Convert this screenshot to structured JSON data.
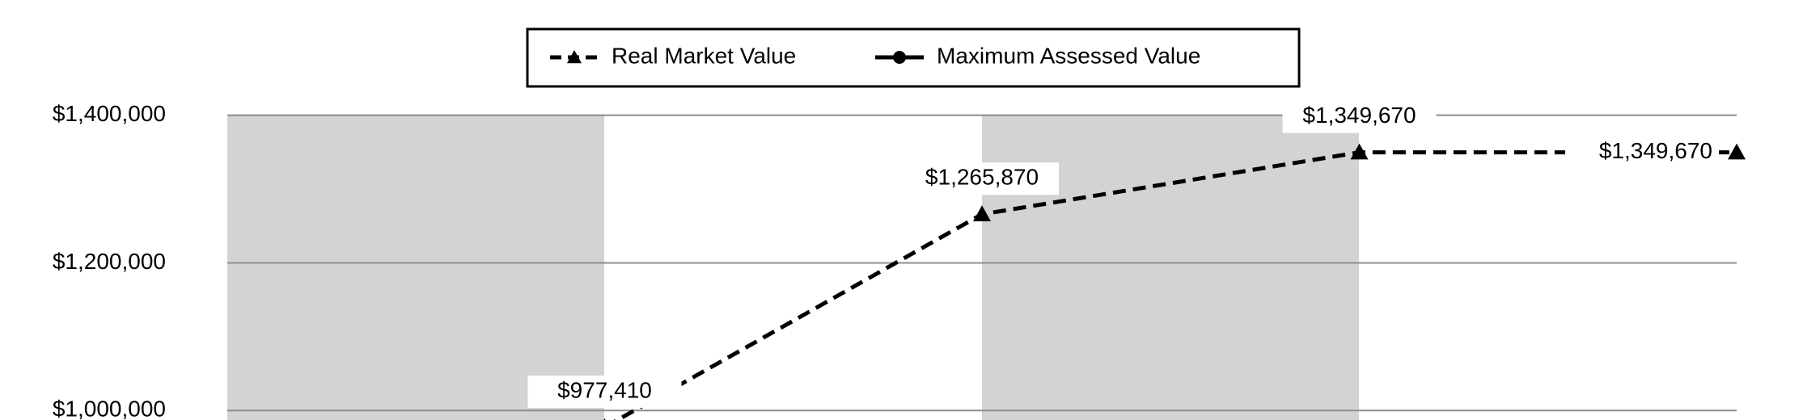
{
  "chart_data": {
    "type": "line",
    "categories": [
      null,
      null,
      null,
      null
    ],
    "series": [
      {
        "name": "Real Market Value",
        "color": "#000000",
        "dash": true,
        "marker": "triangle",
        "values": [
          977410,
          1265870,
          1349670,
          1349670
        ],
        "value_labels": [
          "$977,410",
          "$1,265,870",
          "$1,349,670",
          "$1,349,670"
        ]
      },
      {
        "name": "Maximum Assessed Value",
        "color": "#000000",
        "dash": false,
        "marker": "circle",
        "values": [
          null,
          null,
          null,
          null
        ]
      }
    ],
    "ylim": [
      1000000,
      1400000
    ],
    "yticks": [
      {
        "value": 1000000,
        "label": "$1,000,000"
      },
      {
        "value": 1200000,
        "label": "$1,200,000"
      },
      {
        "value": 1400000,
        "label": "$1,400,000"
      }
    ],
    "grid": true,
    "legend": "top"
  }
}
